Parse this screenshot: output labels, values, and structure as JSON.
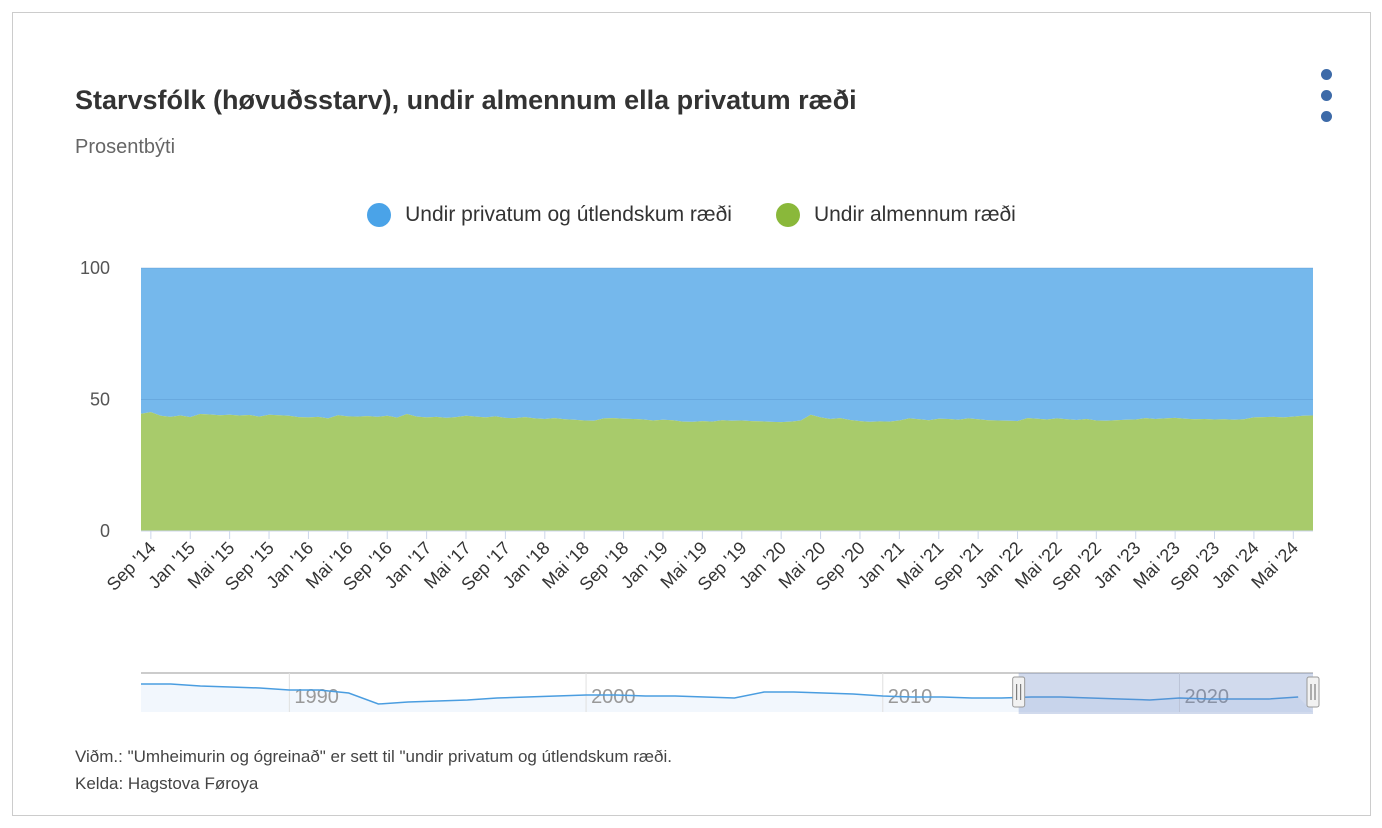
{
  "header": {
    "title": "Starvsfólk (høvuðsstarv), undir almennum ella privatum ræði",
    "subtitle": "Prosentbýti",
    "menu_icon": "more-vertical-icon"
  },
  "footer": {
    "note": "Viðm.: \"Umheimurin og ógreinað\" er sett til \"undir privatum og útlendskum ræði.",
    "source": "Kelda: Hagstova Føroya"
  },
  "chart_data": {
    "type": "area",
    "stacking": "percent",
    "title": "Starvsfólk (høvuðsstarv), undir almennum ella privatum ræði",
    "subtitle": "Prosentbýti",
    "ylim": [
      0,
      100
    ],
    "yticks": [
      0,
      50,
      100
    ],
    "x_start": "2014-08",
    "x_end": "2024-07",
    "xtick_labels": [
      "Sep '14",
      "Jan '15",
      "Mai '15",
      "Sep '15",
      "Jan '16",
      "Mai '16",
      "Sep '16",
      "Jan '17",
      "Mai '17",
      "Sep '17",
      "Jan '18",
      "Mai '18",
      "Sep '18",
      "Jan '19",
      "Mai '19",
      "Sep '19",
      "Jan '20",
      "Mai '20",
      "Sep '20",
      "Jan '21",
      "Mai '21",
      "Sep '21",
      "Jan '22",
      "Mai '22",
      "Sep '22",
      "Jan '23",
      "Mai '23",
      "Sep '23",
      "Jan '24",
      "Mai '24"
    ],
    "legend_position": "top-center",
    "series": [
      {
        "name": "Undir privatum og útlendskum ræði",
        "color": "#4aa3e8",
        "fill": "#75b8ec",
        "values": "complement"
      },
      {
        "name": "Undir almennum ræði",
        "color": "#8ab83a",
        "fill": "#a8cb6b",
        "values": [
          44.6,
          45.2,
          43.8,
          43.4,
          43.9,
          43.3,
          44.5,
          44.3,
          44.0,
          44.2,
          43.9,
          44.1,
          43.5,
          44.2,
          44.0,
          43.8,
          43.3,
          43.2,
          43.4,
          42.8,
          44.0,
          43.6,
          43.5,
          43.7,
          43.4,
          43.8,
          43.1,
          44.5,
          43.5,
          43.2,
          43.4,
          43.0,
          43.3,
          43.8,
          43.5,
          43.2,
          43.6,
          43.0,
          42.9,
          43.3,
          42.8,
          42.6,
          42.9,
          42.5,
          42.3,
          42.0,
          41.9,
          42.8,
          42.9,
          42.7,
          42.6,
          42.4,
          42.0,
          42.3,
          42.1,
          41.6,
          41.5,
          41.8,
          41.6,
          42.1,
          41.9,
          42.0,
          41.8,
          41.7,
          41.5,
          41.4,
          41.6,
          42.0,
          44.2,
          43.2,
          42.6,
          42.9,
          42.2,
          41.8,
          41.5,
          41.7,
          41.6,
          42.0,
          42.8,
          42.5,
          42.1,
          42.7,
          42.6,
          42.3,
          42.8,
          42.5,
          42.1,
          42.0,
          41.9,
          41.8,
          42.9,
          42.7,
          42.4,
          42.8,
          42.5,
          42.2,
          42.6,
          42.0,
          41.9,
          42.1,
          42.3,
          42.4,
          42.9,
          42.6,
          42.8,
          43.0,
          42.7,
          42.5,
          42.6,
          42.4,
          42.5,
          42.3,
          42.5,
          43.2,
          43.3,
          43.4,
          43.2,
          43.5,
          43.8,
          43.9
        ]
      }
    ],
    "navigator": {
      "years": [
        1985,
        1986,
        1987,
        1988,
        1989,
        1990,
        1991,
        1992,
        1993,
        1994,
        1995,
        1996,
        1997,
        1998,
        1999,
        2000,
        2001,
        2002,
        2003,
        2004,
        2005,
        2006,
        2007,
        2008,
        2009,
        2010,
        2011,
        2012,
        2013,
        2014,
        2015,
        2016,
        2017,
        2018,
        2019,
        2020,
        2021,
        2022,
        2023,
        2024
      ],
      "values": [
        50,
        50,
        49,
        48.5,
        48,
        47,
        47,
        45.5,
        40,
        41,
        41.5,
        42,
        43,
        43.5,
        44,
        44.5,
        44.5,
        44,
        44,
        43.5,
        43,
        46,
        46,
        45.5,
        45,
        44,
        43.5,
        43.5,
        43,
        43,
        43.5,
        43.5,
        43,
        42.5,
        42,
        43,
        42.5,
        42.5,
        42.5,
        43.5
      ],
      "ylim": [
        38,
        52
      ],
      "range_years": [
        1985.0,
        2024.5
      ],
      "tick_labels": [
        "1990",
        "2000",
        "2010",
        "2020"
      ],
      "tick_years": [
        1990,
        2000,
        2010,
        2020
      ],
      "selection_years": [
        2014.58,
        2024.5
      ]
    }
  }
}
